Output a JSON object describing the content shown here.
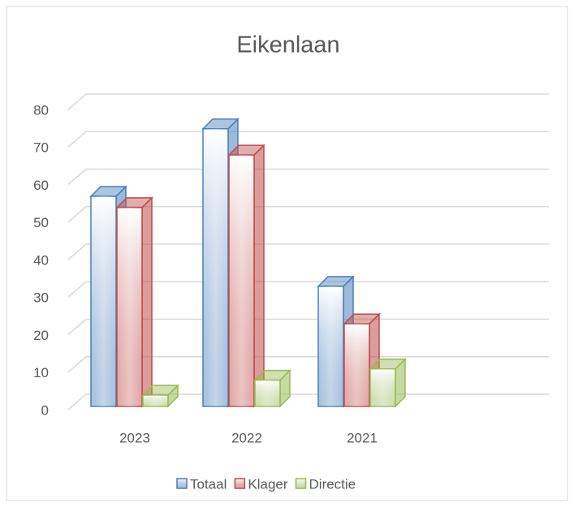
{
  "chart_data": {
    "type": "bar3d",
    "title": "Eikenlaan",
    "categories": [
      "2023",
      "2022",
      "2021"
    ],
    "series": [
      {
        "name": "Totaal",
        "color": "#4a7ebb",
        "values": [
          56,
          74,
          32
        ]
      },
      {
        "name": "Klager",
        "color": "#be4b48",
        "values": [
          53,
          67,
          22
        ]
      },
      {
        "name": "Directie",
        "color": "#98b954",
        "values": [
          3,
          7,
          10
        ]
      }
    ],
    "ylim": [
      0,
      80
    ],
    "yticks": [
      0,
      10,
      20,
      30,
      40,
      50,
      60,
      70,
      80
    ],
    "grid": true,
    "legend": "bottom"
  }
}
